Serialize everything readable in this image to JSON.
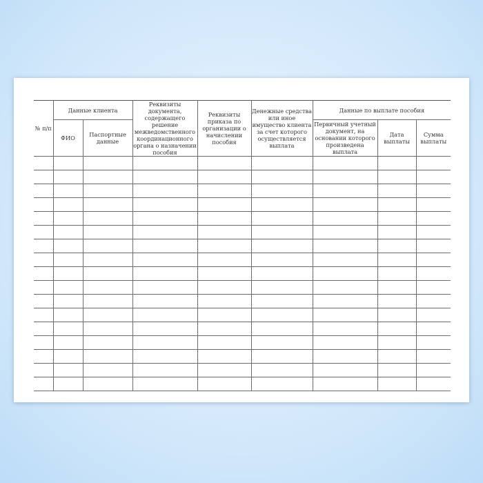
{
  "headers": {
    "num": "№ п/п",
    "client": "Данные клиента",
    "fio": "ФИО",
    "passport": "Паспортные данные",
    "decision_doc": "Реквизиты документа, содержащего решение межведомственного координационного органа о назначении пособия",
    "order": "Реквизиты приказа по организации о начислении пособия",
    "funds": "Денежные средства или иное имущество клиента за счет которого осуществляется выплата",
    "payment": "Данные по выплате пособия",
    "primary_doc": "Первичный учетный документ, на основании которого произведена выплата",
    "date": "Дата выплаты",
    "sum": "Сумма выплаты"
  },
  "empty_rows": 17
}
